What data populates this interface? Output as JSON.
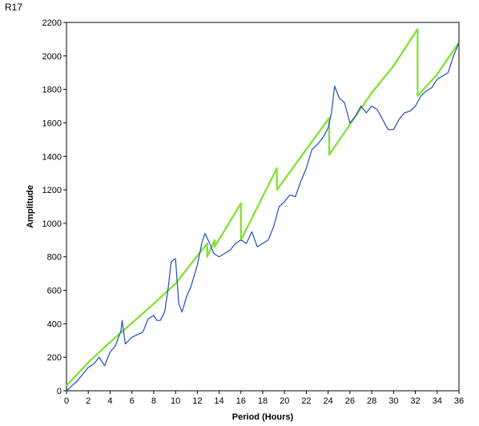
{
  "chart_data": {
    "type": "line",
    "title": "R17",
    "xlabel": "Period (Hours)",
    "ylabel": "Amplitude",
    "xlim": [
      0,
      36
    ],
    "ylim": [
      0,
      2200
    ],
    "xticks": [
      0,
      2,
      4,
      6,
      8,
      10,
      12,
      14,
      16,
      18,
      20,
      22,
      24,
      26,
      28,
      30,
      32,
      34,
      36
    ],
    "yticks": [
      0,
      200,
      400,
      600,
      800,
      1000,
      1200,
      1400,
      1600,
      1800,
      2000,
      2200
    ],
    "grid": false,
    "legend": "none",
    "series": [
      {
        "color": "#7de22a",
        "x": [
          0,
          2,
          4,
          6,
          8,
          10,
          12.9,
          12.9,
          13.6,
          13.6,
          16,
          16,
          19.3,
          19.3,
          24.1,
          24.1,
          28,
          30,
          32.2,
          32.2,
          34,
          36
        ],
        "y": [
          30,
          170,
          290,
          405,
          520,
          640,
          880,
          800,
          900,
          860,
          1120,
          900,
          1330,
          1200,
          1630,
          1410,
          1780,
          1940,
          2160,
          1760,
          1890,
          2080
        ]
      },
      {
        "color": "#1f4bc4",
        "x": [
          0,
          0.5,
          1,
          1.5,
          2,
          2.5,
          3,
          3.5,
          4,
          4.5,
          5,
          5.1,
          5.4,
          6,
          7,
          7.5,
          8,
          8.3,
          8.6,
          9,
          9.3,
          9.6,
          10,
          10.3,
          10.6,
          11,
          11.4,
          12,
          12.4,
          12.7,
          13,
          13.5,
          14,
          14.5,
          15,
          15.5,
          16,
          16.5,
          17,
          17.5,
          18,
          18.5,
          19,
          19.5,
          20,
          20.5,
          21,
          21.5,
          22,
          22.5,
          23,
          23.5,
          24,
          24.3,
          24.6,
          25,
          25.5,
          26,
          26.5,
          27,
          27.5,
          28,
          28.5,
          29,
          29.5,
          30,
          30.5,
          31,
          31.5,
          32,
          32.5,
          33,
          33.5,
          34,
          34.5,
          35,
          35.5,
          36
        ],
        "y": [
          0,
          30,
          60,
          100,
          140,
          160,
          200,
          150,
          230,
          270,
          360,
          420,
          280,
          320,
          350,
          430,
          450,
          420,
          420,
          470,
          600,
          770,
          790,
          520,
          470,
          560,
          620,
          750,
          880,
          940,
          900,
          820,
          800,
          820,
          840,
          880,
          900,
          880,
          950,
          860,
          880,
          900,
          980,
          1100,
          1130,
          1170,
          1160,
          1250,
          1330,
          1440,
          1470,
          1510,
          1570,
          1660,
          1820,
          1750,
          1720,
          1600,
          1640,
          1700,
          1660,
          1700,
          1680,
          1620,
          1560,
          1560,
          1620,
          1660,
          1670,
          1700,
          1760,
          1790,
          1810,
          1860,
          1880,
          1900,
          2000,
          2080
        ]
      }
    ]
  }
}
